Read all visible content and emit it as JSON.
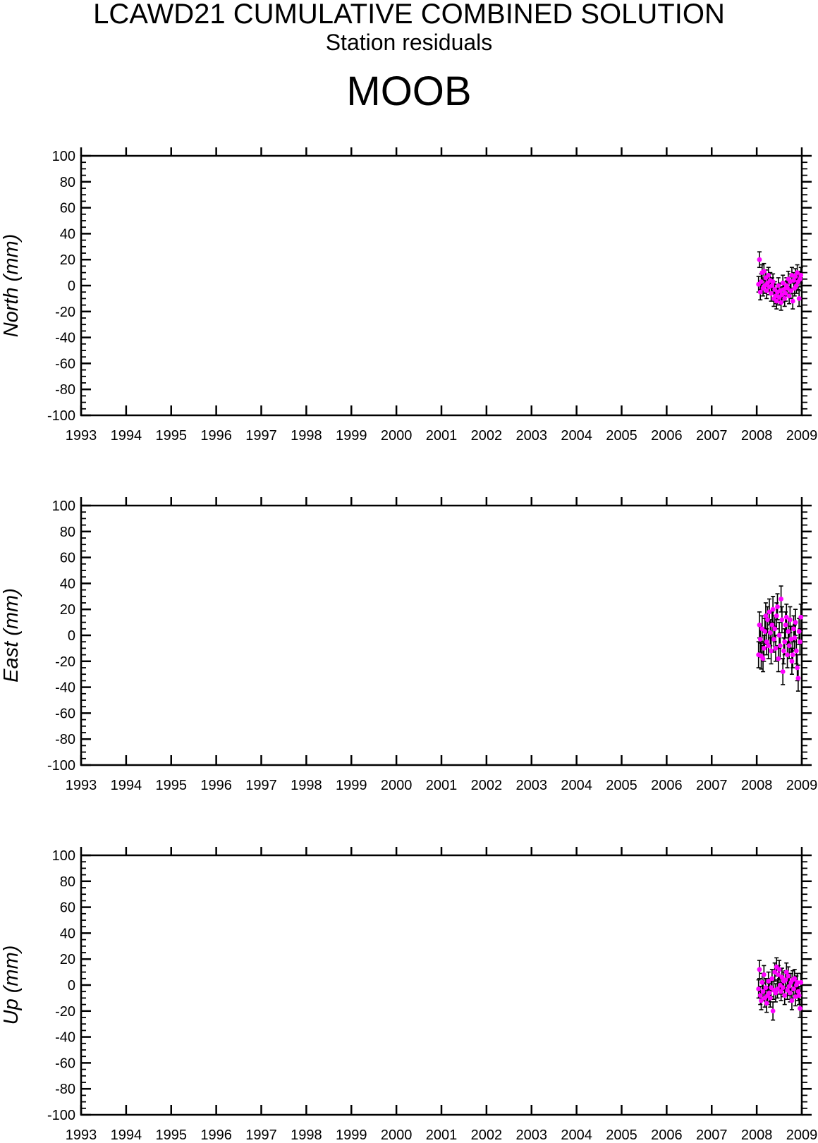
{
  "header": {
    "title": "LCAWD21 CUMULATIVE COMBINED SOLUTION",
    "subtitle": "Station residuals",
    "station": "MOOB"
  },
  "colors": {
    "point": "#ff00ff",
    "errorbar": "#000000",
    "axis": "#000000"
  },
  "chart_data": [
    {
      "type": "scatter",
      "ylabel": "North (mm)",
      "xlim": [
        1993,
        2009
      ],
      "ylim": [
        -100,
        100
      ],
      "xticks": [
        "1993",
        "1994",
        "1995",
        "1996",
        "1997",
        "1998",
        "1999",
        "2000",
        "2001",
        "2002",
        "2003",
        "2004",
        "2005",
        "2006",
        "2007",
        "2008",
        "2009"
      ],
      "yticks": [
        "100",
        "80",
        "60",
        "40",
        "20",
        "0",
        "-20",
        "-40",
        "-60",
        "-80",
        "-100"
      ],
      "grid": false,
      "series": [
        {
          "x": [
            2008.04,
            2008.06,
            2008.08,
            2008.1,
            2008.12,
            2008.14,
            2008.16,
            2008.18,
            2008.2,
            2008.22,
            2008.24,
            2008.26,
            2008.28,
            2008.3,
            2008.32,
            2008.34,
            2008.36,
            2008.38,
            2008.4,
            2008.42,
            2008.44,
            2008.46,
            2008.48,
            2008.5,
            2008.52,
            2008.54,
            2008.56,
            2008.58,
            2008.6,
            2008.62,
            2008.64,
            2008.66,
            2008.68,
            2008.7,
            2008.72,
            2008.74,
            2008.76,
            2008.78,
            2008.8,
            2008.82,
            2008.84,
            2008.86,
            2008.88,
            2008.9,
            2008.92,
            2008.94,
            2008.96,
            2008.98
          ],
          "y": [
            1,
            20,
            -5,
            3,
            10,
            -2,
            11,
            0,
            6,
            -4,
            2,
            8,
            -1,
            4,
            -6,
            0,
            3,
            -10,
            -3,
            -8,
            -12,
            -5,
            0,
            -9,
            -4,
            -13,
            -7,
            2,
            -3,
            -10,
            -6,
            0,
            -2,
            5,
            -8,
            3,
            -4,
            8,
            -12,
            4,
            -2,
            7,
            0,
            10,
            3,
            -10,
            5,
            8
          ],
          "err": [
            6,
            6,
            6,
            6,
            6,
            6,
            6,
            6,
            6,
            6,
            6,
            6,
            6,
            6,
            6,
            6,
            6,
            6,
            6,
            6,
            6,
            6,
            6,
            6,
            6,
            6,
            6,
            6,
            6,
            6,
            6,
            6,
            6,
            6,
            6,
            6,
            6,
            6,
            6,
            6,
            6,
            6,
            6,
            6,
            6,
            6,
            6,
            6
          ]
        }
      ]
    },
    {
      "type": "scatter",
      "ylabel": "East (mm)",
      "xlim": [
        1993,
        2009
      ],
      "ylim": [
        -100,
        100
      ],
      "xticks": [
        "1993",
        "1994",
        "1995",
        "1996",
        "1997",
        "1998",
        "1999",
        "2000",
        "2001",
        "2002",
        "2003",
        "2004",
        "2005",
        "2006",
        "2007",
        "2008",
        "2009"
      ],
      "yticks": [
        "100",
        "80",
        "60",
        "40",
        "20",
        "0",
        "-20",
        "-40",
        "-60",
        "-80",
        "-100"
      ],
      "grid": false,
      "series": [
        {
          "x": [
            2008.04,
            2008.06,
            2008.08,
            2008.1,
            2008.12,
            2008.14,
            2008.16,
            2008.18,
            2008.2,
            2008.22,
            2008.24,
            2008.26,
            2008.28,
            2008.3,
            2008.32,
            2008.34,
            2008.36,
            2008.38,
            2008.4,
            2008.42,
            2008.44,
            2008.46,
            2008.48,
            2008.5,
            2008.52,
            2008.54,
            2008.56,
            2008.58,
            2008.6,
            2008.62,
            2008.64,
            2008.66,
            2008.68,
            2008.7,
            2008.72,
            2008.74,
            2008.76,
            2008.78,
            2008.8,
            2008.82,
            2008.84,
            2008.86,
            2008.88,
            2008.9,
            2008.92,
            2008.94,
            2008.96,
            2008.98
          ],
          "y": [
            -15,
            8,
            -3,
            -16,
            5,
            -18,
            -10,
            3,
            15,
            -5,
            12,
            -8,
            18,
            2,
            -12,
            8,
            20,
            -3,
            5,
            -10,
            15,
            22,
            -18,
            0,
            -8,
            28,
            12,
            -28,
            -12,
            -5,
            8,
            14,
            -15,
            3,
            -8,
            12,
            -3,
            -20,
            -15,
            5,
            -2,
            10,
            -12,
            -25,
            -33,
            3,
            -5,
            14
          ],
          "err": [
            10,
            10,
            10,
            10,
            10,
            10,
            10,
            10,
            10,
            10,
            10,
            10,
            10,
            10,
            10,
            10,
            10,
            10,
            10,
            10,
            10,
            10,
            10,
            10,
            10,
            10,
            10,
            10,
            10,
            10,
            10,
            10,
            10,
            10,
            10,
            10,
            10,
            10,
            10,
            10,
            10,
            10,
            10,
            10,
            10,
            10,
            10,
            10
          ]
        }
      ]
    },
    {
      "type": "scatter",
      "ylabel": "Up (mm)",
      "xlim": [
        1993,
        2009
      ],
      "ylim": [
        -100,
        100
      ],
      "xticks": [
        "1993",
        "1994",
        "1995",
        "1996",
        "1997",
        "1998",
        "1999",
        "2000",
        "2001",
        "2002",
        "2003",
        "2004",
        "2005",
        "2006",
        "2007",
        "2008",
        "2009"
      ],
      "yticks": [
        "100",
        "80",
        "60",
        "40",
        "20",
        "0",
        "-20",
        "-40",
        "-60",
        "-80",
        "-100"
      ],
      "grid": false,
      "series": [
        {
          "x": [
            2008.04,
            2008.06,
            2008.08,
            2008.1,
            2008.12,
            2008.14,
            2008.16,
            2008.18,
            2008.2,
            2008.22,
            2008.24,
            2008.26,
            2008.28,
            2008.3,
            2008.32,
            2008.34,
            2008.36,
            2008.38,
            2008.4,
            2008.42,
            2008.44,
            2008.46,
            2008.48,
            2008.5,
            2008.52,
            2008.54,
            2008.56,
            2008.58,
            2008.6,
            2008.62,
            2008.64,
            2008.66,
            2008.68,
            2008.7,
            2008.72,
            2008.74,
            2008.76,
            2008.78,
            2008.8,
            2008.82,
            2008.84,
            2008.86,
            2008.88,
            2008.9,
            2008.92,
            2008.94,
            2008.96,
            2008.98
          ],
          "y": [
            -3,
            12,
            -8,
            -12,
            2,
            -5,
            8,
            -10,
            -2,
            -14,
            -8,
            3,
            -6,
            -10,
            -2,
            5,
            -20,
            -4,
            10,
            -6,
            14,
            -3,
            8,
            12,
            0,
            -5,
            6,
            -2,
            3,
            -8,
            4,
            10,
            -4,
            7,
            -1,
            -6,
            2,
            -12,
            4,
            -3,
            5,
            -9,
            0,
            2,
            -5,
            -8,
            -18,
            2
          ],
          "err": [
            7,
            7,
            7,
            7,
            7,
            7,
            7,
            7,
            7,
            7,
            7,
            7,
            7,
            7,
            7,
            7,
            7,
            7,
            7,
            7,
            7,
            7,
            7,
            7,
            7,
            7,
            7,
            7,
            7,
            7,
            7,
            7,
            7,
            7,
            7,
            7,
            7,
            7,
            7,
            7,
            7,
            7,
            7,
            7,
            7,
            7,
            7,
            7
          ]
        }
      ]
    }
  ]
}
